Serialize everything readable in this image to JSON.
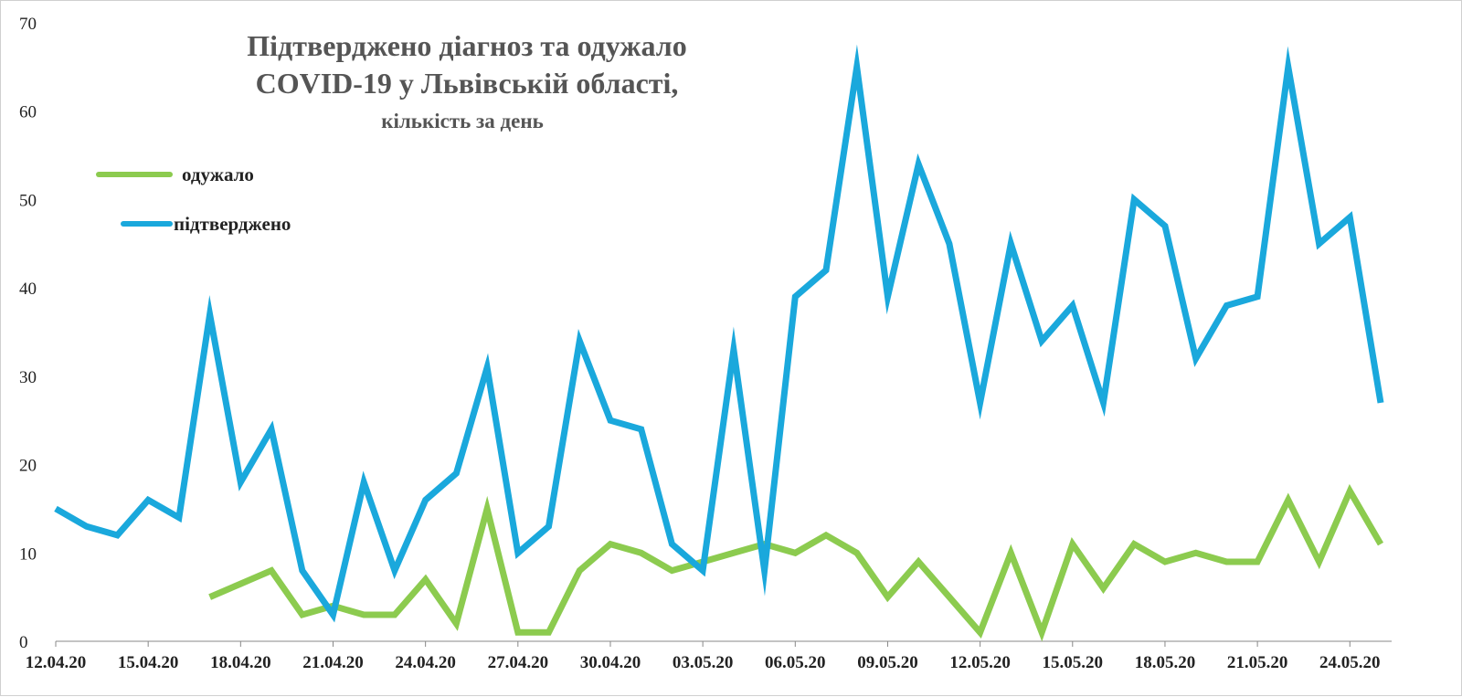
{
  "chart_data": {
    "type": "line",
    "title_lines": [
      "Підтверджено діагноз та одужало",
      "COVID-19 у Львівській області,"
    ],
    "subtitle": "кількість за день",
    "xlabel": "",
    "ylabel": "",
    "ylim": [
      0,
      70
    ],
    "yticks": [
      0,
      10,
      20,
      30,
      40,
      50,
      60,
      70
    ],
    "grid": false,
    "legend_position": "top-left",
    "x": [
      "12.04.20",
      "13.04.20",
      "14.04.20",
      "15.04.20",
      "16.04.20",
      "17.04.20",
      "18.04.20",
      "19.04.20",
      "20.04.20",
      "21.04.20",
      "22.04.20",
      "23.04.20",
      "24.04.20",
      "25.04.20",
      "26.04.20",
      "27.04.20",
      "28.04.20",
      "29.04.20",
      "30.04.20",
      "01.05.20",
      "02.05.20",
      "03.05.20",
      "04.05.20",
      "05.05.20",
      "06.05.20",
      "07.05.20",
      "08.05.20",
      "09.05.20",
      "10.05.20",
      "11.05.20",
      "12.05.20",
      "13.05.20",
      "14.05.20",
      "15.05.20",
      "16.05.20",
      "17.05.20",
      "18.05.20",
      "19.05.20",
      "20.05.20",
      "21.05.20",
      "22.05.20",
      "23.05.20",
      "24.05.20",
      "25.05.20"
    ],
    "xtick_labels": [
      "12.04.20",
      "15.04.20",
      "18.04.20",
      "21.04.20",
      "24.04.20",
      "27.04.20",
      "30.04.20",
      "03.05.20",
      "06.05.20",
      "09.05.20",
      "12.05.20",
      "15.05.20",
      "18.05.20",
      "21.05.20",
      "24.05.20"
    ],
    "series": [
      {
        "name": "одужало",
        "color": "#8ccb4f",
        "values": [
          null,
          null,
          null,
          null,
          null,
          5,
          6.5,
          8,
          3,
          4,
          3,
          3,
          7,
          2,
          15,
          1,
          1,
          8,
          11,
          10,
          8,
          9,
          10,
          11,
          10,
          12,
          10,
          5,
          9,
          5,
          1,
          10,
          1,
          11,
          6,
          11,
          9,
          10,
          9,
          9,
          16,
          9,
          17,
          11
        ]
      },
      {
        "name": "підтверджено",
        "color": "#1aa8dc",
        "values": [
          15,
          13,
          12,
          16,
          14,
          37,
          18,
          24,
          8,
          3,
          18,
          8,
          16,
          19,
          31,
          10,
          13,
          34,
          25,
          24,
          11,
          8,
          33,
          8,
          39,
          42,
          65,
          39,
          54,
          45,
          27,
          45,
          34,
          38,
          27,
          50,
          47,
          32,
          38,
          39,
          65,
          45,
          48,
          27
        ]
      }
    ]
  }
}
